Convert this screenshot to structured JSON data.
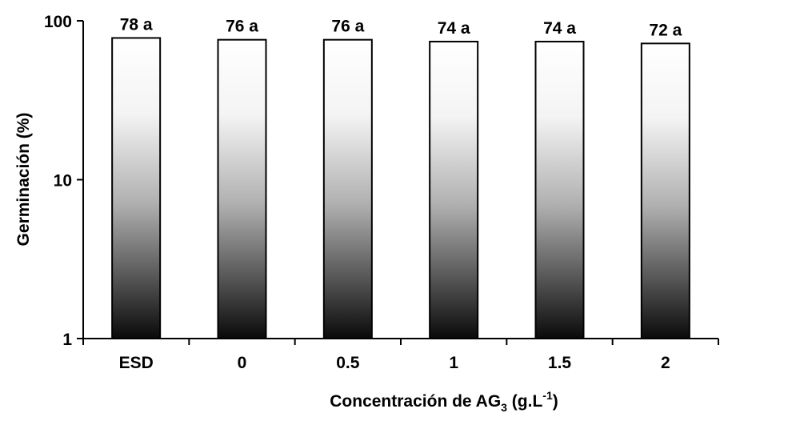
{
  "chart_data": {
    "type": "bar",
    "categories": [
      "ESD",
      "0",
      "0.5",
      "1",
      "1.5",
      "2"
    ],
    "values": [
      78,
      76,
      76,
      74,
      74,
      72
    ],
    "data_labels": [
      "78 a",
      "76 a",
      "76 a",
      "74 a",
      "74 a",
      "72 a"
    ],
    "ylabel": "Germinación (%)",
    "xlabel": {
      "main": "Concentración de AG",
      "sub": "3",
      "unit_open": " (g.L",
      "sup": "-1",
      "unit_close": ")"
    },
    "yscale": "log",
    "ylim": [
      1,
      100
    ],
    "yticks": [
      1,
      10,
      100
    ],
    "ytick_labels": [
      "1",
      "10",
      "100"
    ],
    "grid": false,
    "legend": "none",
    "bar_fill": "gradient white-to-black (top to bottom)",
    "colors": {
      "bar_top": "#ffffff",
      "bar_bottom": "#000000",
      "axis": "#000000"
    }
  }
}
